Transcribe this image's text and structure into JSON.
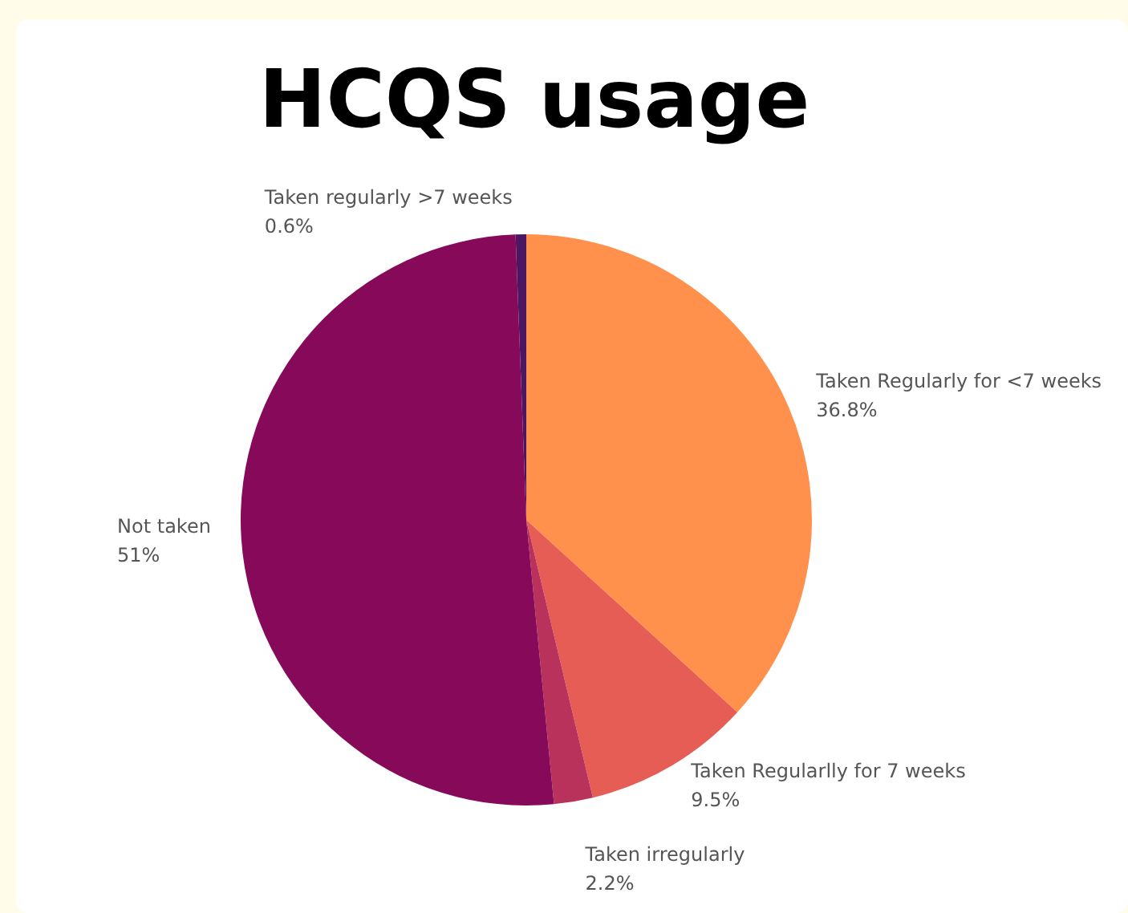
{
  "chart_data": {
    "type": "pie",
    "title": "HCQS usage",
    "categories": [
      "Taken regularly >7 weeks",
      "Taken Regularly for <7 weeks",
      "Taken Regularlly for 7 weeks",
      "Taken irregularly",
      "Not taken"
    ],
    "values": [
      0.6,
      36.8,
      9.5,
      2.2,
      51
    ],
    "value_labels": [
      "0.6%",
      "36.8%",
      "9.5%",
      "2.2%",
      "51%"
    ],
    "colors": [
      "#4b1763",
      "#ff914d",
      "#e55d55",
      "#b9325c",
      "#86095a"
    ],
    "legend": false
  }
}
